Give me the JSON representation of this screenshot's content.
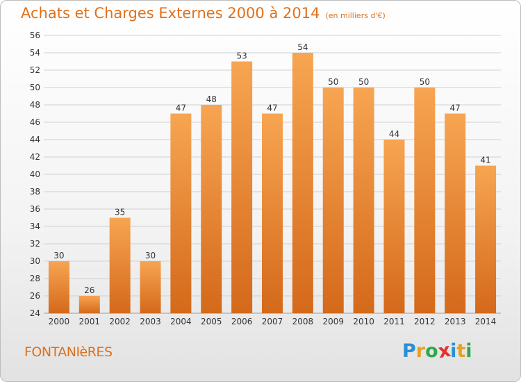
{
  "header": {
    "title": "Achats et Charges Externes 2000 à 2014",
    "subtitle": "(en milliers d'€)"
  },
  "footer": {
    "town": "FONTANIèRES",
    "logo_letters": [
      "P",
      "r",
      "o",
      "x",
      "i",
      "t",
      "i"
    ],
    "logo_colors": [
      "#2a8fd6",
      "#e8a020",
      "#2fa84f",
      "#e0312a",
      "#2a8fd6",
      "#e8a020",
      "#2fa84f"
    ]
  },
  "colors": {
    "bar_top": "#f7a552",
    "bar_bottom": "#d4691a",
    "grid": "#d0d0d0",
    "axis_text": "#333333"
  },
  "chart_data": {
    "type": "bar",
    "title": "Achats et Charges Externes 2000 à 2014",
    "subtitle": "(en milliers d'€)",
    "categories": [
      "2000",
      "2001",
      "2002",
      "2003",
      "2004",
      "2005",
      "2006",
      "2007",
      "2008",
      "2009",
      "2010",
      "2011",
      "2012",
      "2013",
      "2014"
    ],
    "values": [
      30,
      26,
      35,
      30,
      47,
      48,
      53,
      47,
      54,
      50,
      50,
      44,
      50,
      47,
      41
    ],
    "ylim": [
      24,
      56
    ],
    "yticks": [
      24,
      26,
      28,
      30,
      32,
      34,
      36,
      38,
      40,
      42,
      44,
      46,
      48,
      50,
      52,
      54,
      56
    ],
    "grid": true,
    "data_labels": true
  }
}
